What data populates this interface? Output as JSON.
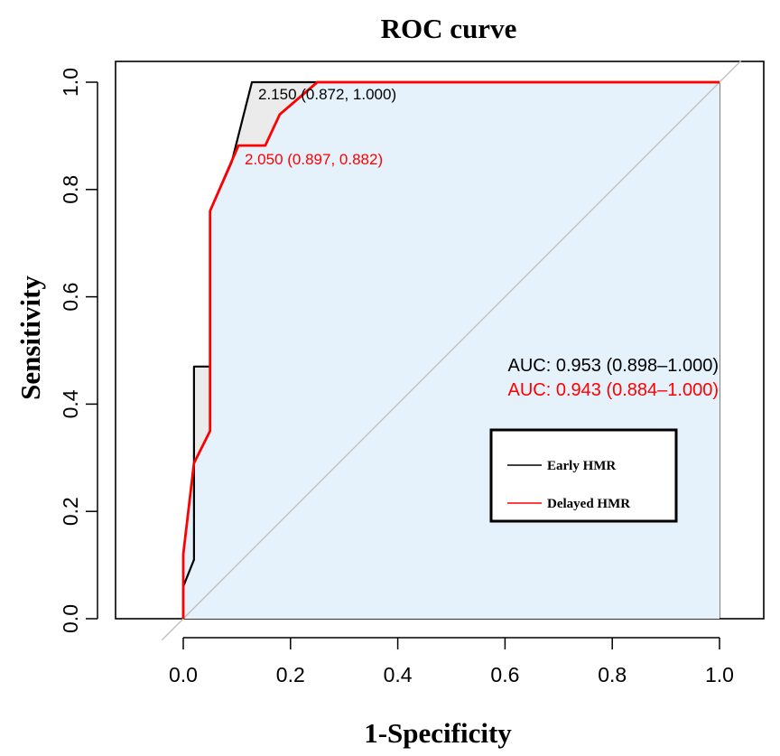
{
  "chart_data": {
    "type": "line",
    "title": "ROC curve",
    "xlabel": "1-Specificity",
    "ylabel": "Sensitivity",
    "xlim": [
      -0.13,
      1.1
    ],
    "ylim": [
      -0.04,
      1.06
    ],
    "x_ticks": [
      "0.0",
      "0.2",
      "0.4",
      "0.6",
      "0.8",
      "1.0"
    ],
    "x_tick_values": [
      0,
      0.2,
      0.4,
      0.6,
      0.8,
      1.0
    ],
    "y_ticks": [
      "0.0",
      "0.2",
      "0.4",
      "0.6",
      "0.8",
      "1.0"
    ],
    "y_tick_values": [
      0,
      0.2,
      0.4,
      0.6,
      0.8,
      1.0
    ],
    "grid": false,
    "legend_position": "lower-right",
    "series": [
      {
        "name": "Early HMR",
        "color": "#000000",
        "points": [
          [
            0,
            0
          ],
          [
            0,
            0.06
          ],
          [
            0.02,
            0.11
          ],
          [
            0.02,
            0.47
          ],
          [
            0.05,
            0.47
          ],
          [
            0.05,
            0.76
          ],
          [
            0.09,
            0.85
          ],
          [
            0.128,
            1.0
          ],
          [
            1.0,
            1.0
          ]
        ],
        "auc_label": "AUC: 0.953 (0.898–1.000)",
        "threshold_label": "2.150 (0.872, 1.000)",
        "threshold_point": [
          0.128,
          1.0
        ]
      },
      {
        "name": "Delayed HMR",
        "color": "#ff0000",
        "points": [
          [
            0,
            0
          ],
          [
            0,
            0.12
          ],
          [
            0.02,
            0.29
          ],
          [
            0.05,
            0.35
          ],
          [
            0.05,
            0.76
          ],
          [
            0.103,
            0.882
          ],
          [
            0.153,
            0.882
          ],
          [
            0.18,
            0.94
          ],
          [
            0.25,
            1.0
          ],
          [
            1.0,
            1.0
          ]
        ],
        "auc_label": "AUC: 0.943 (0.884–1.000)",
        "threshold_label": "2.050 (0.897, 0.882)",
        "threshold_point": [
          0.103,
          0.882
        ]
      }
    ],
    "reference_line": {
      "color": "#bdbdbd",
      "from": [
        -0.04,
        -0.04
      ],
      "to": [
        1.04,
        1.04
      ]
    },
    "colors": {
      "early_fill": "#ebebeb",
      "delayed_fill": "#e5f1fb",
      "axis": "#000000"
    }
  }
}
